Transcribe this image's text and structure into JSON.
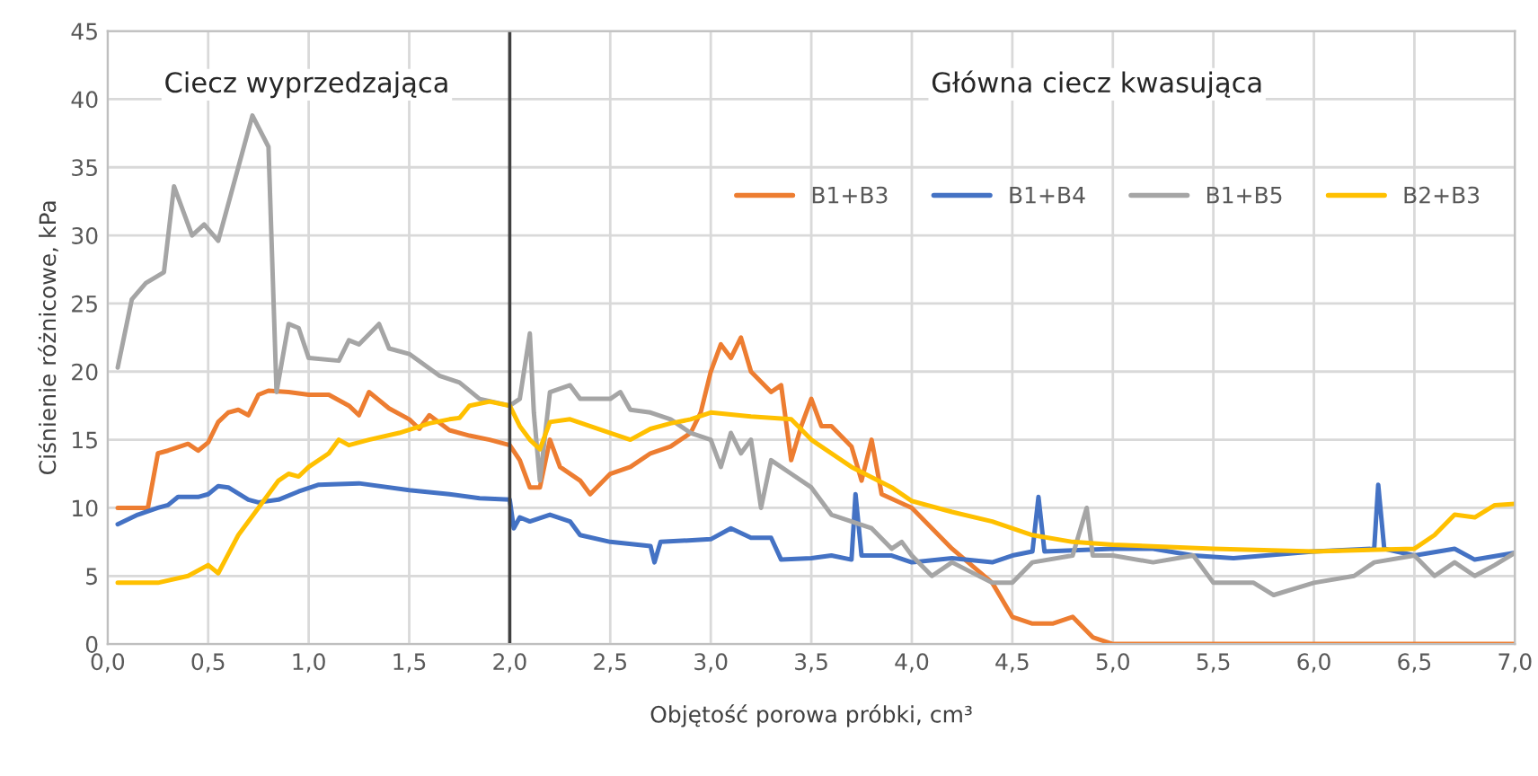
{
  "chart_data": {
    "type": "line",
    "xlabel": "Objętość porowa próbki, cm³",
    "ylabel": "Ciśnienie różnicowe, kPa",
    "annotations": [
      "Ciecz wyprzedzająca",
      "Główna ciecz kwasująca"
    ],
    "xlim": [
      0,
      7
    ],
    "ylim": [
      0,
      45
    ],
    "xticks": [
      {
        "value": 0,
        "label": "0,0"
      },
      {
        "value": 0.5,
        "label": "0,5"
      },
      {
        "value": 1,
        "label": "1,0"
      },
      {
        "value": 1.5,
        "label": "1,5"
      },
      {
        "value": 2,
        "label": "2,0"
      },
      {
        "value": 2.5,
        "label": "2,5"
      },
      {
        "value": 3,
        "label": "3,0"
      },
      {
        "value": 3.5,
        "label": "3,5"
      },
      {
        "value": 4,
        "label": "4,0"
      },
      {
        "value": 4.5,
        "label": "4,5"
      },
      {
        "value": 5,
        "label": "5,0"
      },
      {
        "value": 5.5,
        "label": "5,5"
      },
      {
        "value": 6,
        "label": "6,0"
      },
      {
        "value": 6.5,
        "label": "6,5"
      },
      {
        "value": 7,
        "label": "7,0"
      }
    ],
    "yticks": [
      0,
      5,
      10,
      15,
      20,
      25,
      30,
      35,
      40,
      45
    ],
    "grid": true,
    "legend": "top right",
    "ref_lines": [
      {
        "axis": "x",
        "value": 2,
        "color": "#404040"
      }
    ],
    "series": [
      {
        "name": "B1+B3",
        "color": "#ed7d31",
        "x": [
          0.05,
          0.2,
          0.25,
          0.3,
          0.4,
          0.45,
          0.5,
          0.55,
          0.6,
          0.65,
          0.7,
          0.75,
          0.8,
          0.9,
          1.0,
          1.1,
          1.2,
          1.25,
          1.3,
          1.4,
          1.5,
          1.55,
          1.6,
          1.7,
          1.8,
          1.9,
          2.0,
          2.05,
          2.1,
          2.15,
          2.2,
          2.25,
          2.35,
          2.4,
          2.5,
          2.6,
          2.7,
          2.8,
          2.9,
          2.95,
          3.0,
          3.05,
          3.1,
          3.15,
          3.2,
          3.3,
          3.35,
          3.4,
          3.45,
          3.5,
          3.55,
          3.6,
          3.7,
          3.75,
          3.8,
          3.85,
          4.0,
          4.2,
          4.4,
          4.5,
          4.6,
          4.7,
          4.8,
          4.9,
          5.0,
          7.0
        ],
        "values": [
          10,
          10,
          14,
          14.2,
          14.7,
          14.2,
          14.8,
          16.3,
          17,
          17.2,
          16.8,
          18.3,
          18.6,
          18.5,
          18.3,
          18.3,
          17.5,
          16.8,
          18.5,
          17.3,
          16.5,
          15.8,
          16.8,
          15.7,
          15.3,
          15,
          14.6,
          13.5,
          11.5,
          11.5,
          15,
          13,
          12,
          11,
          12.5,
          13,
          14,
          14.5,
          15.5,
          17,
          20,
          22,
          21,
          22.5,
          20,
          18.5,
          19,
          13.5,
          16,
          18,
          16,
          16,
          14.5,
          12,
          15,
          11,
          10,
          7,
          4.5,
          2,
          1.5,
          1.5,
          2,
          0.5,
          0,
          0
        ]
      },
      {
        "name": "B1+B4",
        "color": "#4472c4",
        "x": [
          0.05,
          0.15,
          0.25,
          0.3,
          0.35,
          0.45,
          0.5,
          0.55,
          0.6,
          0.7,
          0.75,
          0.85,
          0.95,
          1.05,
          1.25,
          1.5,
          1.7,
          1.85,
          2.0,
          2.02,
          2.05,
          2.1,
          2.2,
          2.3,
          2.35,
          2.5,
          2.7,
          2.72,
          2.75,
          3.0,
          3.1,
          3.2,
          3.3,
          3.35,
          3.5,
          3.6,
          3.7,
          3.72,
          3.75,
          3.9,
          4.0,
          4.2,
          4.4,
          4.5,
          4.6,
          4.63,
          4.66,
          5.0,
          5.2,
          5.4,
          5.6,
          6.0,
          6.3,
          6.32,
          6.35,
          6.5,
          6.7,
          6.8,
          7.0
        ],
        "values": [
          8.8,
          9.5,
          10,
          10.2,
          10.8,
          10.8,
          11,
          11.6,
          11.5,
          10.6,
          10.4,
          10.6,
          11.2,
          11.7,
          11.8,
          11.3,
          11,
          10.7,
          10.6,
          8.5,
          9.3,
          9,
          9.5,
          9,
          8,
          7.5,
          7.2,
          6,
          7.5,
          7.7,
          8.5,
          7.8,
          7.8,
          6.2,
          6.3,
          6.5,
          6.2,
          11,
          6.5,
          6.5,
          6,
          6.3,
          6,
          6.5,
          6.8,
          10.8,
          6.8,
          7,
          7,
          6.5,
          6.3,
          6.8,
          7,
          11.7,
          7,
          6.5,
          7,
          6.2,
          6.7
        ]
      },
      {
        "name": "B1+B5",
        "color": "#a5a5a5",
        "x": [
          0.05,
          0.12,
          0.19,
          0.28,
          0.33,
          0.42,
          0.48,
          0.55,
          0.72,
          0.8,
          0.84,
          0.9,
          0.95,
          1.0,
          1.15,
          1.2,
          1.25,
          1.35,
          1.4,
          1.5,
          1.65,
          1.75,
          1.85,
          2.0,
          2.05,
          2.1,
          2.12,
          2.15,
          2.2,
          2.3,
          2.35,
          2.5,
          2.55,
          2.6,
          2.7,
          2.8,
          2.9,
          3.0,
          3.05,
          3.1,
          3.15,
          3.2,
          3.25,
          3.3,
          3.4,
          3.5,
          3.6,
          3.7,
          3.8,
          3.9,
          3.95,
          4.0,
          4.1,
          4.2,
          4.4,
          4.5,
          4.6,
          4.8,
          4.87,
          4.9,
          5.0,
          5.2,
          5.4,
          5.5,
          5.7,
          5.8,
          6.0,
          6.2,
          6.3,
          6.5,
          6.6,
          6.7,
          6.8,
          6.9,
          7.0
        ],
        "values": [
          20.3,
          25.3,
          26.5,
          27.3,
          33.6,
          30,
          30.8,
          29.6,
          38.8,
          36.5,
          18.5,
          23.5,
          23.2,
          21,
          20.8,
          22.3,
          22,
          23.5,
          21.7,
          21.3,
          19.7,
          19.2,
          18,
          17.5,
          18,
          22.8,
          17,
          12,
          18.5,
          19,
          18,
          18,
          18.5,
          17.2,
          17,
          16.5,
          15.5,
          15,
          13,
          15.5,
          14,
          15,
          10,
          13.5,
          12.5,
          11.5,
          9.5,
          9,
          8.5,
          7,
          7.5,
          6.5,
          5,
          6,
          4.5,
          4.5,
          6,
          6.5,
          10,
          6.5,
          6.5,
          6,
          6.5,
          4.5,
          4.5,
          3.6,
          4.5,
          5,
          6,
          6.5,
          5,
          6,
          5,
          5.8,
          6.7
        ]
      },
      {
        "name": "B2+B3",
        "color": "#ffc000",
        "x": [
          0.05,
          0.25,
          0.4,
          0.5,
          0.55,
          0.65,
          0.75,
          0.85,
          0.9,
          0.95,
          1.0,
          1.1,
          1.15,
          1.2,
          1.3,
          1.45,
          1.6,
          1.7,
          1.75,
          1.8,
          1.9,
          2.0,
          2.05,
          2.1,
          2.15,
          2.2,
          2.3,
          2.5,
          2.6,
          2.7,
          2.8,
          2.9,
          3.0,
          3.2,
          3.4,
          3.5,
          3.7,
          3.9,
          4.0,
          4.2,
          4.4,
          4.6,
          4.8,
          5.0,
          5.5,
          6.0,
          6.5,
          6.6,
          6.7,
          6.8,
          6.9,
          7.0
        ],
        "values": [
          4.5,
          4.5,
          5,
          5.8,
          5.2,
          8,
          10,
          12,
          12.5,
          12.3,
          13,
          14,
          15,
          14.6,
          15,
          15.5,
          16.2,
          16.5,
          16.6,
          17.5,
          17.8,
          17.5,
          16,
          15,
          14.3,
          16.3,
          16.5,
          15.5,
          15,
          15.8,
          16.2,
          16.5,
          17,
          16.7,
          16.5,
          15,
          13,
          11.5,
          10.5,
          9.7,
          9,
          8,
          7.5,
          7.3,
          7,
          6.8,
          7,
          8,
          9.5,
          9.3,
          10.2,
          10.3
        ]
      }
    ]
  }
}
